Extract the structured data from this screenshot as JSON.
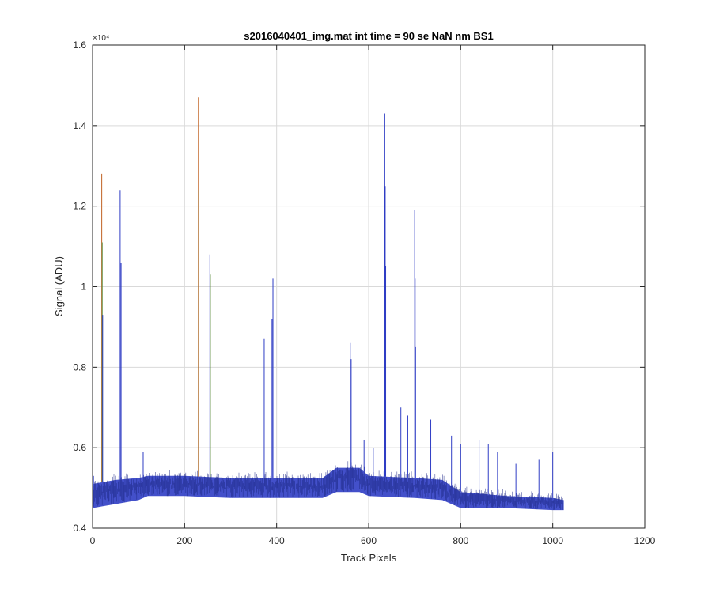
{
  "chart_data": {
    "type": "line",
    "title": "s2016040401_img.mat int time = 90 se  NaN nm BS1",
    "xlabel": "Track Pixels",
    "ylabel": "Signal (ADU)",
    "xlim": [
      0,
      1200
    ],
    "ylim": [
      4000,
      16000
    ],
    "y_exponent_label": "×10⁴",
    "x_ticks": [
      0,
      200,
      400,
      600,
      800,
      1000,
      1200
    ],
    "x_tick_labels": [
      "0",
      "200",
      "400",
      "600",
      "800",
      "1000",
      "1200"
    ],
    "y_ticks": [
      4000,
      6000,
      8000,
      10000,
      12000,
      14000,
      16000
    ],
    "y_tick_labels": [
      "0.4",
      "0.6",
      "0.8",
      "1",
      "1.2",
      "1.4",
      "1.6"
    ],
    "grid": true,
    "baseline": {
      "x": [
        0,
        50,
        100,
        120,
        200,
        300,
        400,
        500,
        530,
        580,
        600,
        700,
        760,
        800,
        900,
        1000,
        1024
      ],
      "upper": [
        5100,
        5200,
        5250,
        5300,
        5300,
        5250,
        5250,
        5250,
        5500,
        5500,
        5300,
        5250,
        5200,
        4900,
        4800,
        4750,
        4700
      ],
      "lower": [
        4500,
        4600,
        4700,
        4800,
        4800,
        4750,
        4750,
        4750,
        4900,
        4900,
        4800,
        4750,
        4700,
        4500,
        4500,
        4450,
        4450
      ]
    },
    "spikes": [
      {
        "x": 2,
        "y": 5300
      },
      {
        "x": 20,
        "y": 12800
      },
      {
        "x": 21,
        "y": 11100
      },
      {
        "x": 22,
        "y": 9300
      },
      {
        "x": 60,
        "y": 12400
      },
      {
        "x": 62,
        "y": 10600
      },
      {
        "x": 110,
        "y": 5900
      },
      {
        "x": 230,
        "y": 14700
      },
      {
        "x": 231,
        "y": 12400
      },
      {
        "x": 255,
        "y": 10800
      },
      {
        "x": 256,
        "y": 10300
      },
      {
        "x": 373,
        "y": 8700
      },
      {
        "x": 390,
        "y": 9200
      },
      {
        "x": 392,
        "y": 10200
      },
      {
        "x": 560,
        "y": 8600
      },
      {
        "x": 562,
        "y": 8200
      },
      {
        "x": 590,
        "y": 6200
      },
      {
        "x": 610,
        "y": 6000
      },
      {
        "x": 635,
        "y": 14300
      },
      {
        "x": 636,
        "y": 12500
      },
      {
        "x": 637,
        "y": 10500
      },
      {
        "x": 670,
        "y": 7000
      },
      {
        "x": 685,
        "y": 6800
      },
      {
        "x": 700,
        "y": 11900
      },
      {
        "x": 701,
        "y": 10200
      },
      {
        "x": 702,
        "y": 8500
      },
      {
        "x": 735,
        "y": 6700
      },
      {
        "x": 780,
        "y": 6300
      },
      {
        "x": 800,
        "y": 6100
      },
      {
        "x": 840,
        "y": 6200
      },
      {
        "x": 860,
        "y": 6100
      },
      {
        "x": 880,
        "y": 5900
      },
      {
        "x": 920,
        "y": 5600
      },
      {
        "x": 970,
        "y": 5700
      },
      {
        "x": 1000,
        "y": 5900
      }
    ],
    "colors": {
      "trace": "#2f3dc4",
      "trace_dark": "#1f2a8a",
      "spike_alt_1": "#5a8a3a",
      "spike_alt_2": "#c06020",
      "grid": "#d9d9d9",
      "axis": "#262626"
    }
  }
}
